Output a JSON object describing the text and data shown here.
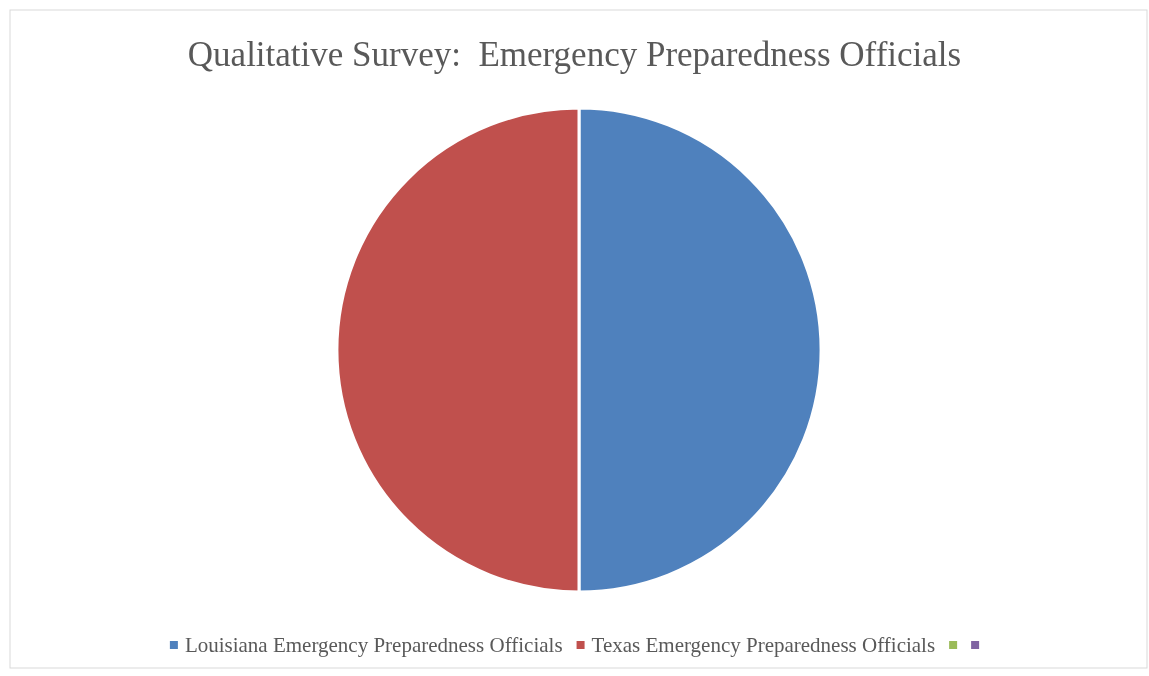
{
  "chart_data": {
    "type": "pie",
    "title": "Qualitative Survey:  Emergency Preparedness Officials",
    "categories": [
      "Louisiana Emergency Preparedness Officials",
      "Texas Emergency Preparedness Officials",
      null,
      null
    ],
    "values": [
      50,
      50,
      0,
      0
    ],
    "colors": [
      "#4f81bd",
      "#c0504d",
      "#9bbb59",
      "#8064a2"
    ],
    "legend": "bottom"
  }
}
